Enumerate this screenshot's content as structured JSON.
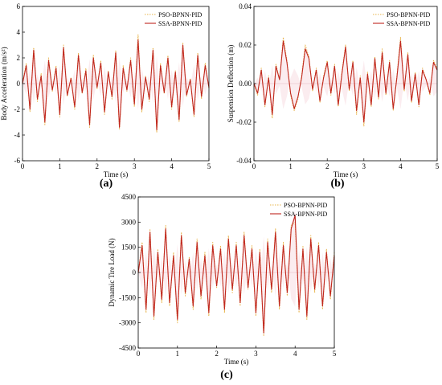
{
  "chart_data": [
    {
      "type": "line",
      "panel_label": "(a)",
      "xlabel": "Time (s)",
      "ylabel": "Body Acceleration (m/s²)",
      "xlim": [
        0,
        5
      ],
      "ylim": [
        -6,
        6
      ],
      "xticks": [
        0,
        1,
        2,
        3,
        4,
        5
      ],
      "yticks": [
        -6,
        -4,
        -2,
        0,
        2,
        4,
        6
      ],
      "xtick_labels": [
        "0",
        "1",
        "2",
        "3",
        "4",
        "5"
      ],
      "ytick_labels": [
        "-6",
        "-4",
        "-2",
        "0",
        "2",
        "4",
        "6"
      ],
      "legend_position": "top-right",
      "series": [
        {
          "name": "PSO-BPNN-PID",
          "color": "#e8b44a",
          "dash": "dotted",
          "x": [
            0,
            0.1,
            0.2,
            0.3,
            0.4,
            0.5,
            0.6,
            0.7,
            0.8,
            0.9,
            1.0,
            1.1,
            1.2,
            1.3,
            1.4,
            1.5,
            1.6,
            1.7,
            1.8,
            1.9,
            2.0,
            2.1,
            2.2,
            2.3,
            2.4,
            2.5,
            2.6,
            2.7,
            2.8,
            2.9,
            3.0,
            3.1,
            3.2,
            3.3,
            3.4,
            3.5,
            3.6,
            3.7,
            3.8,
            3.9,
            4.0,
            4.1,
            4.2,
            4.3,
            4.4,
            4.5,
            4.6,
            4.7,
            4.8,
            4.9,
            5.0
          ],
          "y": [
            0,
            1.6,
            -2.2,
            2.8,
            -1.4,
            0.8,
            -3.2,
            2.0,
            -0.6,
            1.4,
            -2.6,
            3.0,
            -1.0,
            0.5,
            -2.0,
            2.4,
            -0.8,
            1.2,
            -3.4,
            2.2,
            -0.4,
            1.8,
            -2.4,
            1.0,
            -1.2,
            2.6,
            -3.6,
            1.4,
            -0.6,
            2.0,
            -1.8,
            3.8,
            -2.2,
            0.6,
            -1.4,
            2.8,
            -3.8,
            1.6,
            -0.8,
            2.2,
            -2.0,
            1.0,
            -3.0,
            3.2,
            -1.0,
            0.4,
            -2.6,
            2.4,
            -1.2,
            1.6,
            -0.4
          ]
        },
        {
          "name": "SSA-BPNN-PID",
          "color": "#c0271f",
          "dash": "solid",
          "x": [
            0,
            0.1,
            0.2,
            0.3,
            0.4,
            0.5,
            0.6,
            0.7,
            0.8,
            0.9,
            1.0,
            1.1,
            1.2,
            1.3,
            1.4,
            1.5,
            1.6,
            1.7,
            1.8,
            1.9,
            2.0,
            2.1,
            2.2,
            2.3,
            2.4,
            2.5,
            2.6,
            2.7,
            2.8,
            2.9,
            3.0,
            3.1,
            3.2,
            3.3,
            3.4,
            3.5,
            3.6,
            3.7,
            3.8,
            3.9,
            4.0,
            4.1,
            4.2,
            4.3,
            4.4,
            4.5,
            4.6,
            4.7,
            4.8,
            4.9,
            5.0
          ],
          "y": [
            0,
            1.4,
            -2.0,
            2.6,
            -1.2,
            0.6,
            -3.0,
            1.8,
            -0.5,
            1.2,
            -2.4,
            2.8,
            -0.9,
            0.4,
            -1.8,
            2.2,
            -0.7,
            1.0,
            -3.2,
            2.0,
            -0.3,
            1.6,
            -2.2,
            0.9,
            -1.0,
            2.4,
            -3.4,
            1.2,
            -0.5,
            1.8,
            -1.6,
            3.4,
            -2.0,
            0.5,
            -1.2,
            2.6,
            -3.6,
            1.4,
            -0.7,
            2.0,
            -1.8,
            0.9,
            -2.8,
            3.0,
            -0.9,
            0.3,
            -2.4,
            2.2,
            -1.0,
            1.4,
            -0.3
          ]
        }
      ]
    },
    {
      "type": "line",
      "panel_label": "(b)",
      "xlabel": "Time (s)",
      "ylabel": "Suspension Deflection (m)",
      "xlim": [
        0,
        5
      ],
      "ylim": [
        -0.04,
        0.04
      ],
      "xticks": [
        0,
        1,
        2,
        3,
        4,
        5
      ],
      "yticks": [
        -0.04,
        -0.02,
        0,
        0.02,
        0.04
      ],
      "xtick_labels": [
        "0",
        "1",
        "2",
        "3",
        "4",
        "5"
      ],
      "ytick_labels": [
        "-0.04",
        "-0.02",
        "0.00",
        "0.02",
        "0.04"
      ],
      "legend_position": "top-right",
      "series": [
        {
          "name": "PSO-BPNN-PID",
          "color": "#e8b44a",
          "dash": "dotted",
          "x": [
            0,
            0.1,
            0.2,
            0.3,
            0.4,
            0.5,
            0.6,
            0.7,
            0.8,
            0.9,
            1.0,
            1.1,
            1.2,
            1.3,
            1.4,
            1.5,
            1.6,
            1.7,
            1.8,
            1.9,
            2.0,
            2.1,
            2.2,
            2.3,
            2.4,
            2.5,
            2.6,
            2.7,
            2.8,
            2.9,
            3.0,
            3.1,
            3.2,
            3.3,
            3.4,
            3.5,
            3.6,
            3.7,
            3.8,
            3.9,
            4.0,
            4.1,
            4.2,
            4.3,
            4.4,
            4.5,
            4.6,
            4.7,
            4.8,
            4.9,
            5.0
          ],
          "y": [
            0,
            -0.006,
            0.008,
            -0.012,
            0.004,
            -0.018,
            0.01,
            0.002,
            0.024,
            0.012,
            -0.006,
            -0.014,
            -0.008,
            0.004,
            0.02,
            0.014,
            -0.004,
            0.008,
            -0.01,
            0.004,
            0.012,
            -0.006,
            0.01,
            -0.012,
            0.006,
            0.02,
            -0.004,
            0.012,
            -0.016,
            0.004,
            -0.022,
            0.006,
            -0.012,
            0.014,
            -0.008,
            0.018,
            -0.006,
            0.012,
            -0.014,
            0.004,
            0.024,
            -0.004,
            0.016,
            -0.01,
            0.006,
            -0.012,
            0.008,
            0.002,
            -0.006,
            0.012,
            0.008
          ]
        },
        {
          "name": "SSA-BPNN-PID",
          "color": "#c0271f",
          "dash": "solid",
          "x": [
            0,
            0.1,
            0.2,
            0.3,
            0.4,
            0.5,
            0.6,
            0.7,
            0.8,
            0.9,
            1.0,
            1.1,
            1.2,
            1.3,
            1.4,
            1.5,
            1.6,
            1.7,
            1.8,
            1.9,
            2.0,
            2.1,
            2.2,
            2.3,
            2.4,
            2.5,
            2.6,
            2.7,
            2.8,
            2.9,
            3.0,
            3.1,
            3.2,
            3.3,
            3.4,
            3.5,
            3.6,
            3.7,
            3.8,
            3.9,
            4.0,
            4.1,
            4.2,
            4.3,
            4.4,
            4.5,
            4.6,
            4.7,
            4.8,
            4.9,
            5.0
          ],
          "y": [
            0,
            -0.005,
            0.007,
            -0.011,
            0.003,
            -0.016,
            0.009,
            0.002,
            0.022,
            0.011,
            -0.005,
            -0.013,
            -0.007,
            0.003,
            0.018,
            0.013,
            -0.003,
            0.007,
            -0.009,
            0.003,
            0.011,
            -0.005,
            0.009,
            -0.011,
            0.005,
            0.019,
            -0.003,
            0.011,
            -0.014,
            0.003,
            -0.02,
            0.005,
            -0.011,
            0.013,
            -0.007,
            0.016,
            -0.005,
            0.011,
            -0.013,
            0.003,
            0.022,
            -0.003,
            0.015,
            -0.009,
            0.005,
            -0.011,
            0.007,
            0.002,
            -0.005,
            0.011,
            0.007
          ]
        }
      ]
    },
    {
      "type": "line",
      "panel_label": "(c)",
      "xlabel": "Time (s)",
      "ylabel": "Dynamic Tire Load (N)",
      "xlim": [
        0,
        5
      ],
      "ylim": [
        -4500,
        4500
      ],
      "xticks": [
        0,
        1,
        2,
        3,
        4,
        5
      ],
      "yticks": [
        -4500,
        -3000,
        -1500,
        0,
        1500,
        3000,
        4500
      ],
      "xtick_labels": [
        "0",
        "1",
        "2",
        "3",
        "4",
        "5"
      ],
      "ytick_labels": [
        "-4500",
        "-3000",
        "-1500",
        "0",
        "1500",
        "3000",
        "4500"
      ],
      "legend_position": "top-right",
      "series": [
        {
          "name": "PSO-BPNN-PID",
          "color": "#e8b44a",
          "dash": "dotted",
          "x": [
            0,
            0.1,
            0.2,
            0.3,
            0.4,
            0.5,
            0.6,
            0.7,
            0.8,
            0.9,
            1.0,
            1.1,
            1.2,
            1.3,
            1.4,
            1.5,
            1.6,
            1.7,
            1.8,
            1.9,
            2.0,
            2.1,
            2.2,
            2.3,
            2.4,
            2.5,
            2.6,
            2.7,
            2.8,
            2.9,
            3.0,
            3.1,
            3.2,
            3.3,
            3.4,
            3.5,
            3.6,
            3.7,
            3.8,
            3.9,
            4.0,
            4.1,
            4.2,
            4.3,
            4.4,
            4.5,
            4.6,
            4.7,
            4.8,
            4.9,
            5.0
          ],
          "y": [
            0,
            1800,
            -2400,
            2600,
            -2800,
            1400,
            -1800,
            2800,
            -2000,
            1200,
            -3000,
            2400,
            -1400,
            900,
            -2200,
            2000,
            -1600,
            1200,
            -2600,
            1800,
            -900,
            1600,
            -2400,
            2200,
            -1200,
            1800,
            -2000,
            2400,
            -1000,
            1600,
            -2600,
            1400,
            -3800,
            2000,
            -1200,
            2600,
            -2200,
            1800,
            -1400,
            2800,
            3000,
            -2400,
            1600,
            -2800,
            2200,
            -1200,
            1800,
            -2200,
            1400,
            -1600,
            1200
          ]
        },
        {
          "name": "SSA-BPNN-PID",
          "color": "#c0271f",
          "dash": "solid",
          "x": [
            0,
            0.1,
            0.2,
            0.3,
            0.4,
            0.5,
            0.6,
            0.7,
            0.8,
            0.9,
            1.0,
            1.1,
            1.2,
            1.3,
            1.4,
            1.5,
            1.6,
            1.7,
            1.8,
            1.9,
            2.0,
            2.1,
            2.2,
            2.3,
            2.4,
            2.5,
            2.6,
            2.7,
            2.8,
            2.9,
            3.0,
            3.1,
            3.2,
            3.3,
            3.4,
            3.5,
            3.6,
            3.7,
            3.8,
            3.9,
            4.0,
            4.1,
            4.2,
            4.3,
            4.4,
            4.5,
            4.6,
            4.7,
            4.8,
            4.9,
            5.0
          ],
          "y": [
            0,
            1600,
            -2200,
            2400,
            -2600,
            1200,
            -1600,
            2600,
            -1800,
            1000,
            -2800,
            2200,
            -1200,
            800,
            -2000,
            1800,
            -1400,
            1000,
            -2400,
            1600,
            -800,
            1400,
            -2200,
            2000,
            -1000,
            1600,
            -1800,
            2200,
            -900,
            1400,
            -2400,
            1200,
            -3600,
            1800,
            -1000,
            2400,
            -2000,
            1600,
            -1200,
            2600,
            3400,
            -2200,
            1400,
            -2600,
            2000,
            -1000,
            1600,
            -2000,
            1200,
            -1400,
            1000
          ]
        }
      ]
    }
  ]
}
